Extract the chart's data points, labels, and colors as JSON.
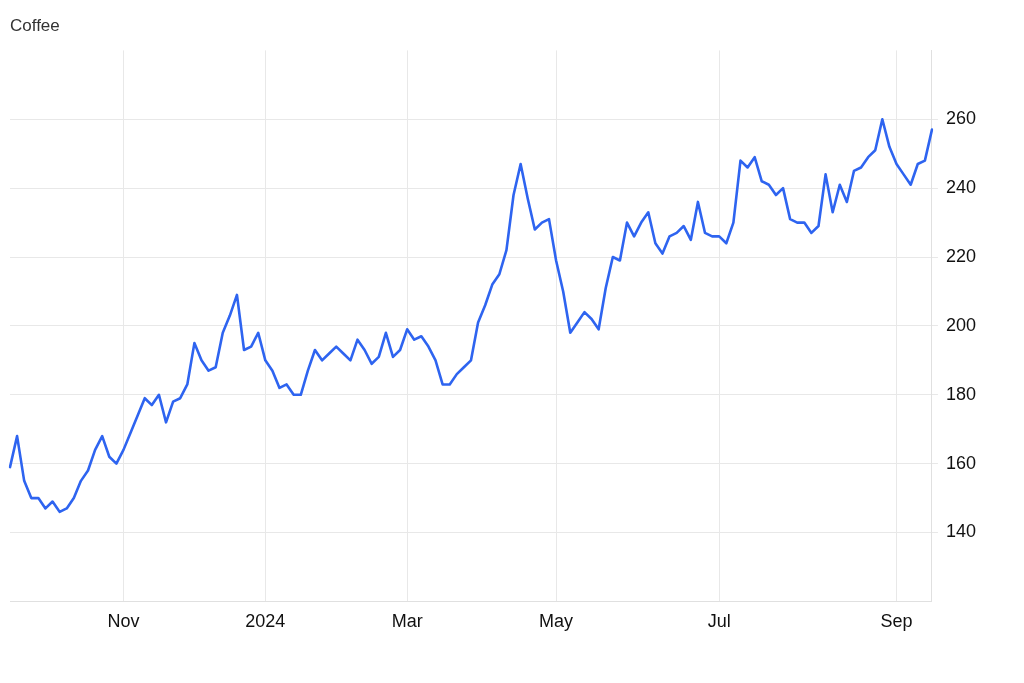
{
  "chart_data": {
    "type": "line",
    "title": "Coffee",
    "categories": [
      null,
      null,
      null,
      null,
      null,
      null,
      null,
      null,
      null,
      null,
      null,
      null,
      null,
      null,
      null,
      null,
      "Nov",
      null,
      null,
      null,
      null,
      null,
      null,
      null,
      null,
      null,
      null,
      null,
      null,
      null,
      null,
      null,
      null,
      null,
      null,
      null,
      "2024",
      null,
      null,
      null,
      null,
      null,
      null,
      null,
      null,
      null,
      null,
      null,
      null,
      null,
      null,
      null,
      null,
      null,
      null,
      null,
      "Mar",
      null,
      null,
      null,
      null,
      null,
      null,
      null,
      null,
      null,
      null,
      null,
      null,
      null,
      null,
      null,
      null,
      null,
      null,
      null,
      null,
      "May",
      null,
      null,
      null,
      null,
      null,
      null,
      null,
      null,
      null,
      null,
      null,
      null,
      null,
      null,
      null,
      null,
      null,
      null,
      null,
      null,
      null,
      null,
      "Jul",
      null,
      null,
      null,
      null,
      null,
      null,
      null,
      null,
      null,
      null,
      null,
      null,
      null,
      null,
      null,
      null,
      null,
      null,
      null,
      null,
      null,
      null,
      null,
      null,
      "Sep",
      null,
      null,
      null,
      null,
      null
    ],
    "series": [
      {
        "color": "#2e64f0",
        "values": [
          159,
          168,
          155,
          150,
          150,
          147,
          149,
          146,
          147,
          150,
          155,
          158,
          164,
          168,
          162,
          160,
          164,
          169,
          174,
          179,
          177,
          180,
          172,
          178,
          179,
          183,
          195,
          190,
          187,
          188,
          198,
          203,
          209,
          193,
          194,
          198,
          190,
          187,
          182,
          183,
          180,
          180,
          187,
          193,
          190,
          192,
          194,
          192,
          190,
          196,
          193,
          189,
          191,
          198,
          191,
          193,
          199,
          196,
          197,
          194,
          190,
          183,
          183,
          186,
          188,
          190,
          201,
          206,
          212,
          215,
          222,
          238,
          247,
          237,
          228,
          230,
          231,
          219,
          210,
          198,
          201,
          204,
          202,
          199,
          211,
          220,
          219,
          230,
          226,
          230,
          233,
          224,
          221,
          226,
          227,
          229,
          225,
          236,
          227,
          226,
          226,
          224,
          230,
          248,
          246,
          249,
          242,
          241,
          238,
          240,
          231,
          230,
          230,
          227,
          229,
          244,
          233,
          241,
          236,
          245,
          246,
          249,
          251,
          260,
          252,
          247,
          244,
          241,
          247,
          248,
          257
        ]
      }
    ],
    "ylim": [
      120,
      280
    ],
    "yticks": [
      140,
      160,
      180,
      200,
      220,
      240,
      260
    ],
    "grid": true,
    "legend": false,
    "marker": "none",
    "line_style": "solid"
  }
}
